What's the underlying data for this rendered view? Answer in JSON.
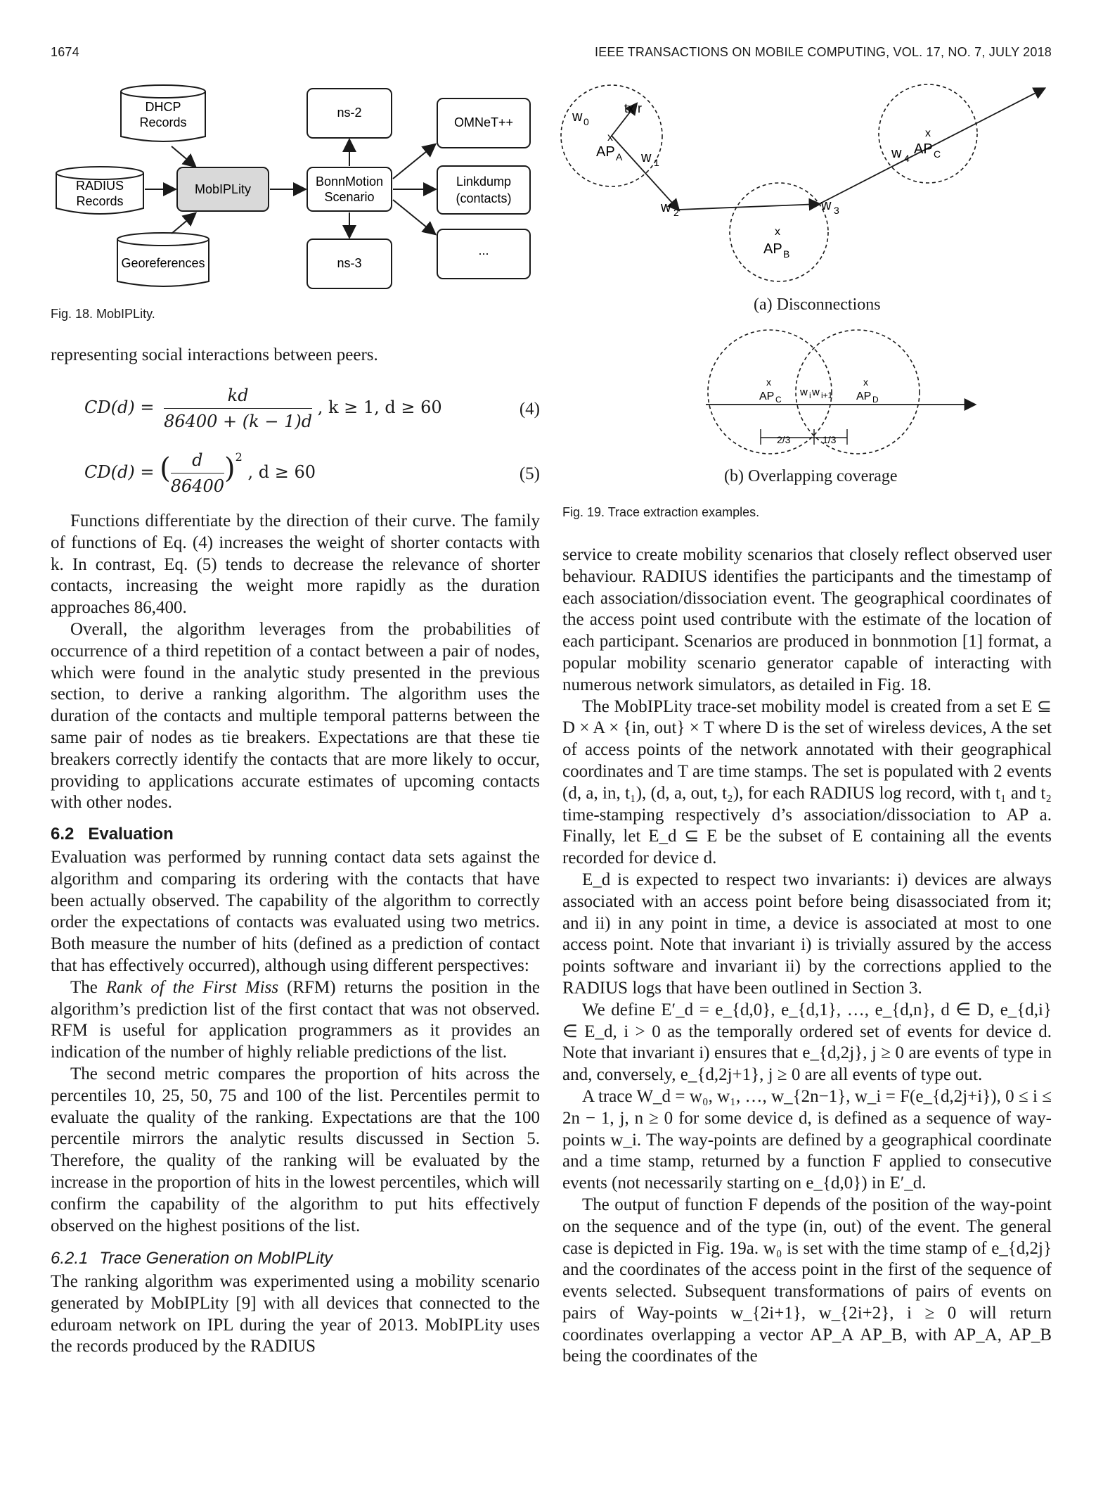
{
  "header": {
    "page_number": "1674",
    "journal": "IEEE TRANSACTIONS ON MOBILE COMPUTING,   VOL. 17,   NO. 7,   JULY 2018"
  },
  "fig18": {
    "nodes": {
      "dhcp": "DHCP\nRecords",
      "radius": "RADIUS\nRecords",
      "geo": "Georeferences",
      "mobiplity": "MobIPLity",
      "bonnmotion": "BonnMotion\nScenario",
      "ns2": "ns-2",
      "ns3": "ns-3",
      "omnet": "OMNeT++",
      "linkdump": "Linkdump\n(contacts)",
      "more": "..."
    },
    "caption": "Fig. 18. MobIPLity."
  },
  "fig19": {
    "a_caption": "(a) Disconnections",
    "b_caption": "(b) Overlapping coverage",
    "caption": "Fig. 19. Trace extraction examples.",
    "a_labels": {
      "w0": "w0",
      "tx_r": "tx r",
      "x": "x",
      "ap_a": "APA",
      "w1": "w1",
      "w2": "w2",
      "w3": "w3",
      "w4": "w4",
      "ap_b": "APB",
      "ap_c": "APC"
    },
    "b_labels": {
      "ap_c": "APC",
      "ap_d": "APD",
      "wiwi1": "wiwi+1",
      "two_thirds": "2/3",
      "one_third": "1/3"
    }
  },
  "left": {
    "intro": "representing social interactions between peers.",
    "eq4": {
      "lhs": "CD(d) =",
      "num": "kd",
      "den": "86400 + (k − 1)d",
      "cond": ",   k ≥ 1, d ≥ 60",
      "number": "(4)"
    },
    "eq5": {
      "lhs": "CD(d) =",
      "num": "d",
      "den": "86400",
      "exp": "2",
      "cond": ",   d ≥ 60",
      "number": "(5)"
    },
    "p1": "Functions differentiate by the direction of their curve. The family of functions of Eq. (4) increases the weight of shorter contacts with k. In contrast, Eq. (5) tends to decrease the relevance of shorter contacts, increasing the weight more rapidly as the duration approaches 86,400.",
    "p2": "Overall, the algorithm leverages from the probabilities of occurrence of a third repetition of a contact between a pair of nodes, which were found in the analytic study presented in the previous section, to derive a ranking algorithm. The algorithm uses the duration of the contacts and multiple temporal patterns between the same pair of nodes as tie breakers. Expectations are that these tie breakers correctly identify the contacts that are more likely to occur, providing to applications accurate estimates of upcoming contacts with other nodes.",
    "sec62_num": "6.2",
    "sec62_title": "Evaluation",
    "p3": "Evaluation was performed by running contact data sets against the algorithm and comparing its ordering with the contacts that have been actually observed. The capability of the algorithm to correctly order the expectations of contacts was evaluated using two metrics. Both measure the number of hits (defined as a prediction of contact that has effectively occurred), although using different perspectives:",
    "p4_a": "The ",
    "p4_em": "Rank of the First Miss",
    "p4_b": " (RFM) returns the position in the algorithm’s prediction list of the first contact that was not observed. RFM is useful for application programmers as it provides an indication of the number of highly reliable predictions of the list.",
    "p5": "The second metric compares the proportion of hits across the percentiles 10, 25, 50, 75 and 100 of the list. Percentiles permit to evaluate the quality of the ranking. Expectations are that the 100 percentile mirrors the analytic results discussed in Section 5. Therefore, the quality of the ranking will be evaluated by the increase in the proportion of hits in the lowest percentiles, which will confirm the capability of the algorithm to put hits effectively observed on the highest positions of the list.",
    "sec621_num": "6.2.1",
    "sec621_title": "Trace Generation on MobIPLity",
    "p6": "The ranking algorithm was experimented using a mobility scenario generated by MobIPLity [9] with all devices that connected to the eduroam network on IPL during the year of 2013. MobIPLity uses the records produced by the RADIUS"
  },
  "right": {
    "p1": "service to create mobility scenarios that closely reflect observed user behaviour. RADIUS identifies the participants and the timestamp of each association/dissociation event. The geographical coordinates of the access point used contribute with the estimate of the location of each participant. Scenarios are produced in bonnmotion [1] format, a popular mobility scenario generator capable of interacting with numerous network simulators, as detailed in Fig. 18.",
    "p2": "The MobIPLity trace-set mobility model is created from a set E ⊆ D × A × {in, out} × T where D is the set of wireless devices, A the set of access points of the network annotated with their geographical coordinates and T are time stamps. The set is populated with 2 events (d, a, in, t₁), (d, a, out, t₂), for each RADIUS log record, with t₁ and t₂ time-stamping respectively d’s association/dissociation to AP a. Finally, let E_d ⊆ E be the subset of E containing all the events recorded for device d.",
    "p3": "E_d is expected to respect two invariants: i) devices are always associated with an access point before being disassociated from it; and ii) in any point in time, a device is associated at most to one access point. Note that invariant i) is trivially assured by the access points software and invariant ii) by the corrections applied to the RADIUS logs that have been outlined in Section 3.",
    "p4": "We define E′_d = e_{d,0}, e_{d,1}, …, e_{d,n}, d ∈ D, e_{d,i} ∈ E_d, i > 0 as the temporally ordered set of events for device d. Note that invariant i) ensures that e_{d,2j}, j ≥ 0 are events of type in and, conversely, e_{d,2j+1}, j ≥ 0 are all events of type out.",
    "p5": "A trace W_d = w₀, w₁, …, w_{2n−1}, w_i = F(e_{d,2j+i}), 0 ≤ i ≤ 2n − 1, j, n ≥ 0 for some device d, is defined as a sequence of way-points w_i. The way-points are defined by a geographical coordinate and a time stamp, returned by a function F applied to consecutive events (not necessarily starting on e_{d,0}) in E′_d.",
    "p6": "The output of function F depends of the position of the way-point on the sequence and of the type (in, out) of the event. The general case is depicted in Fig. 19a. w₀ is set with the time stamp of e_{d,2j} and the coordinates of the access point in the first of the sequence of events selected. Subsequent transformations of pairs of events on pairs of Way-points w_{2i+1}, w_{2i+2}, i ≥ 0 will return coordinates overlapping a vector AP_A AP_B, with AP_A, AP_B being the coordinates of the"
  }
}
